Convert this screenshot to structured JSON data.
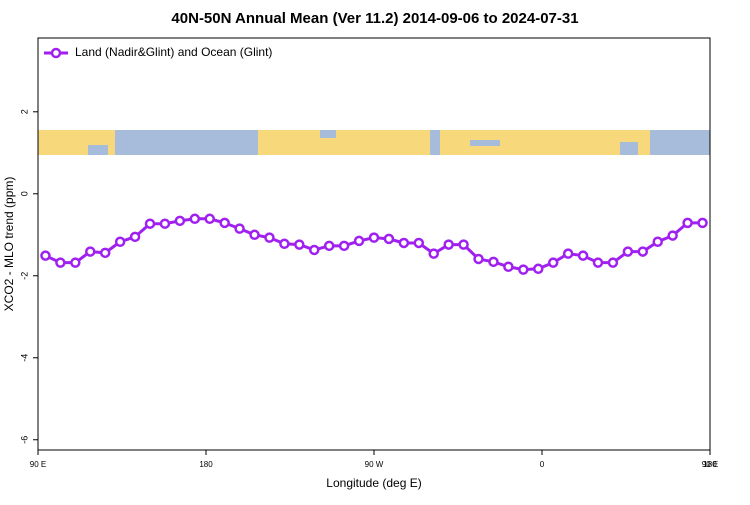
{
  "chart_data": {
    "type": "line",
    "title": "40N-50N Annual Mean (Ver 11.2)   2014-09-06 to 2024-07-31",
    "x_label": "Longitude (deg E)",
    "y_label": "XCO2 - MLO trend (ppm)",
    "xlim": [
      90,
      450
    ],
    "ylim": [
      -6.25,
      3.8
    ],
    "xticks": [
      {
        "value": 90,
        "label": "90 E"
      },
      180,
      {
        "value": 270,
        "label": "90 W"
      },
      {
        "value": 360,
        "label": "0"
      },
      {
        "value": 450,
        "label": "90 E"
      },
      {
        "value": 540,
        "label": "180"
      }
    ],
    "yticks": [
      -6,
      -4,
      -2,
      0,
      2
    ],
    "x": [
      94,
      102,
      110,
      118,
      126,
      134,
      142,
      150,
      158,
      166,
      174,
      182,
      190,
      198,
      206,
      214,
      222,
      230,
      238,
      246,
      254,
      262,
      270,
      278,
      286,
      294,
      302,
      310,
      318,
      326,
      334,
      342,
      350,
      358,
      366,
      374,
      382,
      390,
      398,
      406,
      414,
      422,
      430,
      438,
      446
    ],
    "series": [
      {
        "name": "Land (Nadir&Glint) and Ocean (Glint)",
        "color": "#a020f0",
        "values": [
          -1.51,
          -1.68,
          -1.68,
          -1.41,
          -1.44,
          -1.17,
          -1.05,
          -0.73,
          -0.73,
          -0.66,
          -0.61,
          -0.61,
          -0.71,
          -0.85,
          -1.0,
          -1.07,
          -1.22,
          -1.24,
          -1.37,
          -1.27,
          -1.27,
          -1.15,
          -1.07,
          -1.1,
          -1.2,
          -1.2,
          -1.46,
          -1.24,
          -1.24,
          -1.59,
          -1.66,
          -1.78,
          -1.85,
          -1.83,
          -1.68,
          -1.46,
          -1.51,
          -1.68,
          -1.68,
          -1.41,
          -1.41,
          -1.17,
          -1.02,
          -0.71,
          -0.71
        ]
      }
    ],
    "legend": "upper left"
  }
}
